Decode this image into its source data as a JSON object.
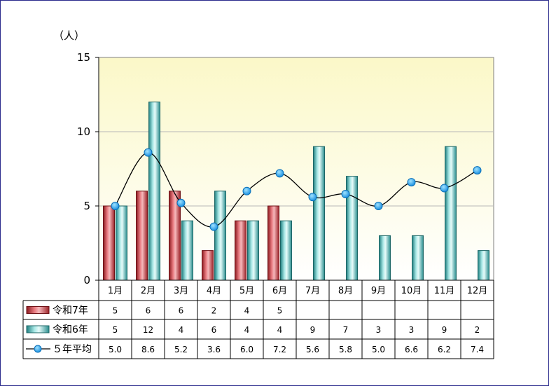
{
  "chart_data": {
    "type": "bar",
    "unit_label": "（人）",
    "categories": [
      "1月",
      "2月",
      "3月",
      "4月",
      "5月",
      "6月",
      "7月",
      "8月",
      "9月",
      "10月",
      "11月",
      "12月"
    ],
    "ylim": [
      0,
      15
    ],
    "yticks": [
      0,
      5,
      10,
      15
    ],
    "grid": true,
    "series": [
      {
        "name": "令和7年",
        "type": "bar",
        "color": "#c0303a",
        "values": [
          5,
          6,
          6,
          2,
          4,
          5,
          null,
          null,
          null,
          null,
          null,
          null
        ],
        "table_values": [
          "5",
          "6",
          "6",
          "2",
          "4",
          "5",
          "",
          "",
          "",
          "",
          "",
          ""
        ]
      },
      {
        "name": "令和6年",
        "type": "bar",
        "color": "#3aa8a8",
        "values": [
          5,
          12,
          4,
          6,
          4,
          4,
          9,
          7,
          3,
          3,
          9,
          2
        ],
        "table_values": [
          "5",
          "12",
          "4",
          "6",
          "4",
          "4",
          "9",
          "7",
          "3",
          "3",
          "9",
          "2"
        ]
      },
      {
        "name": "５年平均",
        "type": "line",
        "color": "#1aa0e8",
        "values": [
          5.0,
          8.6,
          5.2,
          3.6,
          6.0,
          7.2,
          5.6,
          5.8,
          5.0,
          6.6,
          6.2,
          7.4
        ],
        "table_values": [
          "5.0",
          "8.6",
          "5.2",
          "3.6",
          "6.0",
          "7.2",
          "5.6",
          "5.8",
          "5.0",
          "6.6",
          "6.2",
          "7.4"
        ]
      }
    ]
  }
}
